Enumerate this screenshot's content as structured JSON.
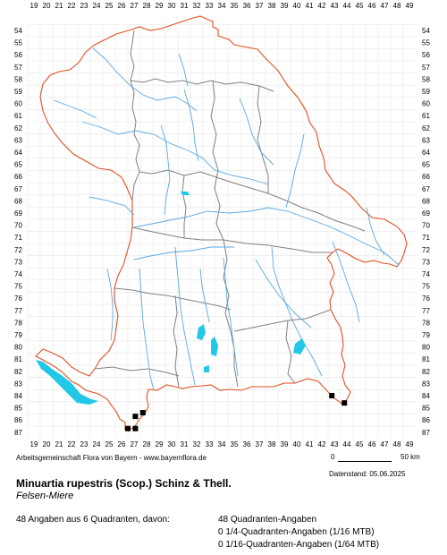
{
  "map": {
    "x_axis": [
      "19",
      "20",
      "21",
      "22",
      "23",
      "24",
      "25",
      "26",
      "27",
      "28",
      "29",
      "30",
      "31",
      "32",
      "33",
      "34",
      "35",
      "36",
      "37",
      "38",
      "39",
      "40",
      "41",
      "42",
      "43",
      "44",
      "45",
      "46",
      "47",
      "48",
      "49"
    ],
    "y_axis": [
      "54",
      "55",
      "56",
      "57",
      "58",
      "59",
      "60",
      "61",
      "62",
      "63",
      "64",
      "65",
      "66",
      "67",
      "68",
      "69",
      "70",
      "71",
      "72",
      "73",
      "74",
      "75",
      "76",
      "77",
      "78",
      "79",
      "80",
      "81",
      "82",
      "83",
      "84",
      "85",
      "86",
      "87"
    ],
    "colors": {
      "border": "#e05020",
      "districts": "#808080",
      "rivers": "#5aa8e0",
      "lakes": "#22c8e8",
      "grid": "#e6e6e6",
      "occurrence": "#000000"
    },
    "occurrences": [
      {
        "col": 26.5,
        "row": 86.7
      },
      {
        "col": 27.1,
        "row": 86.7
      },
      {
        "col": 27.1,
        "row": 85.7
      },
      {
        "col": 27.7,
        "row": 85.4
      },
      {
        "col": 42.8,
        "row": 84.0
      },
      {
        "col": 43.8,
        "row": 84.6
      }
    ]
  },
  "credit": "Arbeitsgemeinschaft Flora von Bayern - www.bayernflora.de",
  "scale": {
    "left": "0",
    "right": "50 km"
  },
  "date_label": "Datenstand: 05.06.2025",
  "species": {
    "latin": "Minuartia rupestris (Scop.) Schinz & Thell.",
    "german": "Felsen-Miere"
  },
  "stats": {
    "summary": "48 Angaben aus 6 Quadranten, davon:",
    "quadrant": "48 Quadranten-Angaben",
    "quarter": "0 1/4-Quadranten-Angaben (1/16 MTB)",
    "sixteenth": "0 1/16-Quadranten-Angaben (1/64 MTB)"
  }
}
